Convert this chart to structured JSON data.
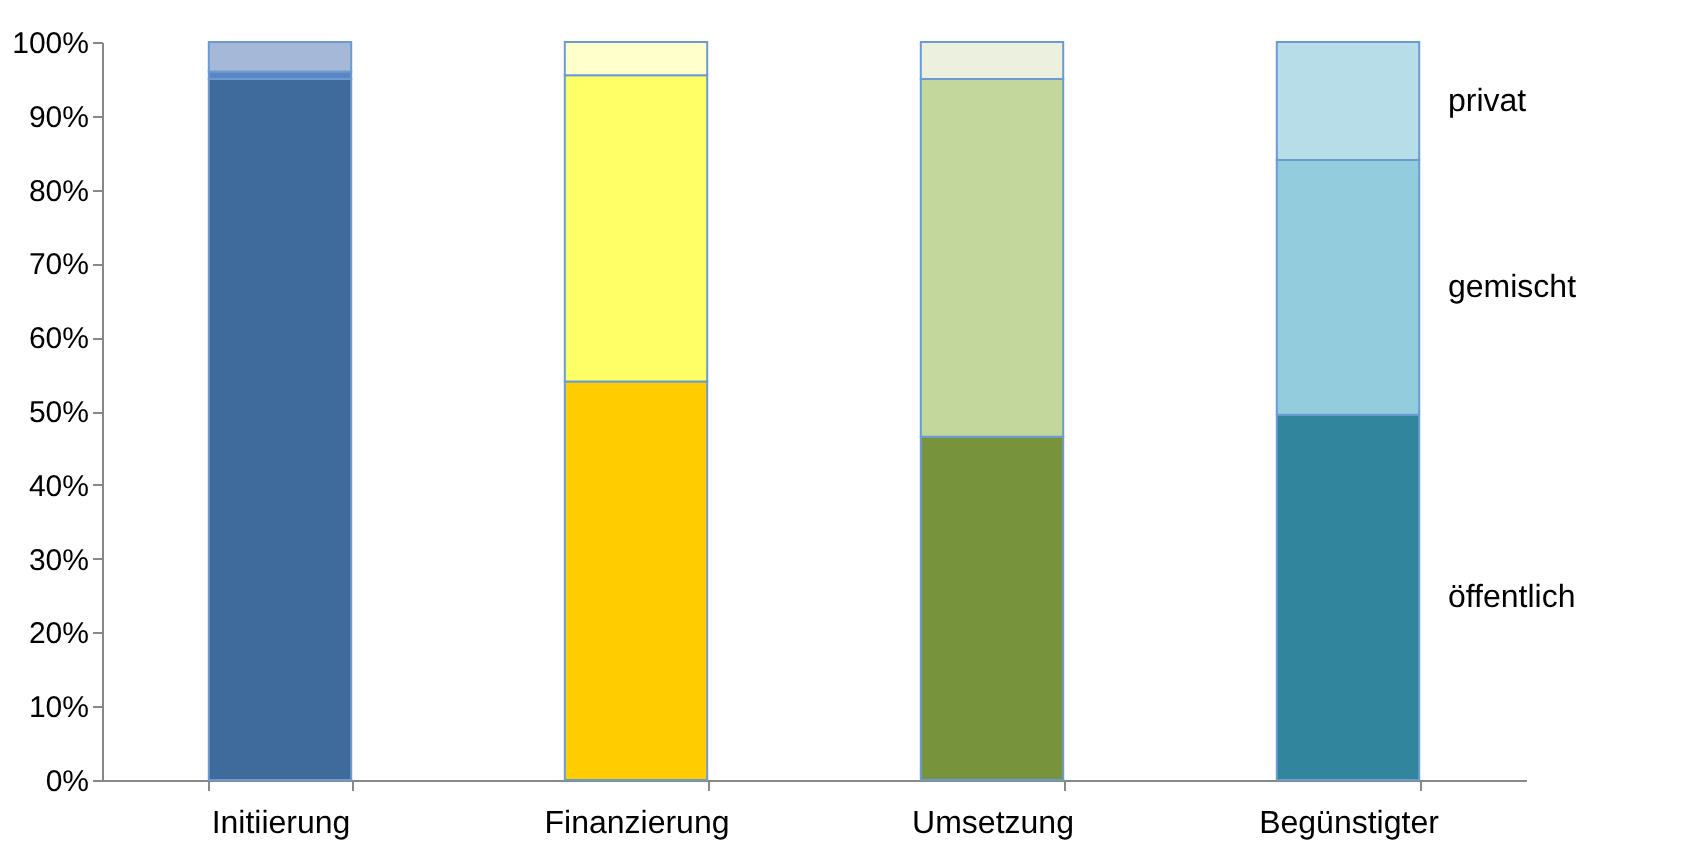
{
  "chart_data": {
    "type": "bar",
    "stacked": true,
    "categories": [
      "Initiierung",
      "Finanzierung",
      "Umsetzung",
      "Begünstigter"
    ],
    "series": [
      {
        "name": "öffentlich",
        "colors": [
          "#3f6a9c",
          "#ffcc00",
          "#77933c",
          "#31859c"
        ],
        "values": [
          95,
          54,
          46.5,
          49.5
        ]
      },
      {
        "name": "gemischt",
        "colors": [
          "#5b86c2",
          "#ffff66",
          "#c3d69b",
          "#93cddd"
        ],
        "values": [
          1,
          41.5,
          48.5,
          34.5
        ]
      },
      {
        "name": "privat",
        "colors": [
          "#a6b8d8",
          "#ffffcc",
          "#ebf1de",
          "#b7dee8"
        ],
        "values": [
          4,
          4.5,
          5,
          16
        ]
      }
    ],
    "ylim": [
      0,
      100
    ],
    "yticks": [
      {
        "value": 0,
        "label": "0%"
      },
      {
        "value": 10,
        "label": "10%"
      },
      {
        "value": 20,
        "label": "20%"
      },
      {
        "value": 30,
        "label": "30%"
      },
      {
        "value": 40,
        "label": "40%"
      },
      {
        "value": 50,
        "label": "50%"
      },
      {
        "value": 60,
        "label": "60%"
      },
      {
        "value": 70,
        "label": "70%"
      },
      {
        "value": 80,
        "label": "80%"
      },
      {
        "value": 90,
        "label": "90%"
      },
      {
        "value": 100,
        "label": "100%"
      }
    ],
    "grid": false,
    "legend": false
  }
}
